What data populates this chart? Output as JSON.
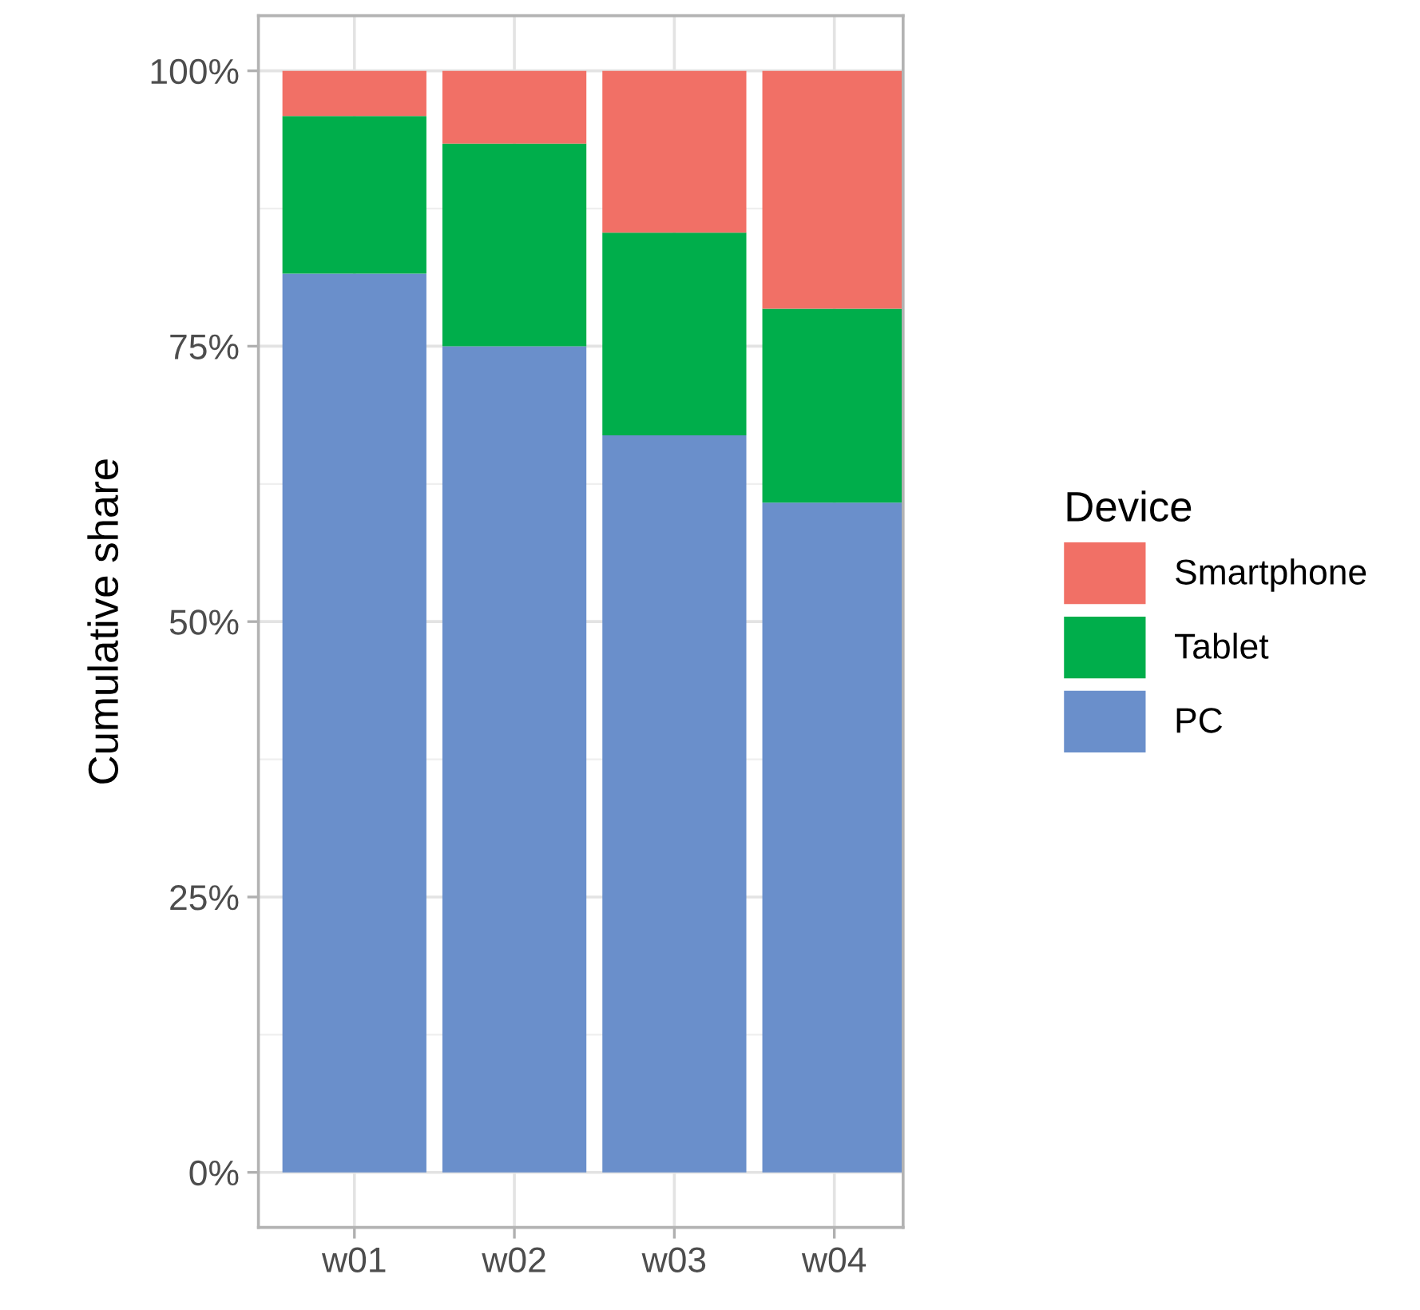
{
  "chart_data": {
    "type": "bar",
    "stacked": true,
    "ylabel": "Cumulative share",
    "legend_title": "Device",
    "legend": "right",
    "grid": true,
    "categories": [
      "w01",
      "w02",
      "w03",
      "w04"
    ],
    "series": [
      {
        "name": "PC",
        "color": "#6a8fcb",
        "values": [
          81.6,
          75.0,
          66.9,
          60.8
        ]
      },
      {
        "name": "Tablet",
        "color": "#00ae4b",
        "values": [
          14.3,
          18.4,
          18.4,
          17.6
        ]
      },
      {
        "name": "Smartphone",
        "color": "#f17066",
        "values": [
          4.1,
          6.6,
          14.7,
          21.6
        ]
      }
    ],
    "ylim": [
      -5,
      105
    ],
    "yticks": [
      {
        "value": 0,
        "label": "0%"
      },
      {
        "value": 25,
        "label": "25%"
      },
      {
        "value": 50,
        "label": "50%"
      },
      {
        "value": 75,
        "label": "75%"
      },
      {
        "value": 100,
        "label": "100%"
      }
    ]
  }
}
